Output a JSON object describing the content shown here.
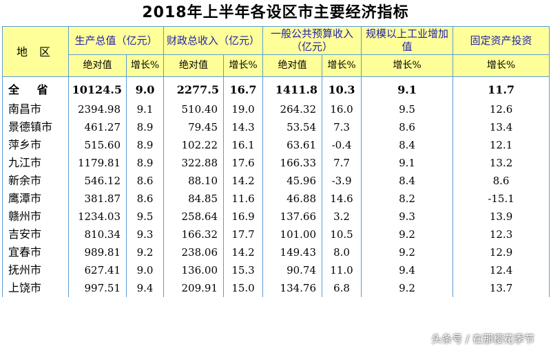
{
  "title": "2018年上半年各设区市主要经济指标",
  "headers": {
    "region": "地  区",
    "gdp": "生产总值（亿元）",
    "fiscal": "财政总收入（亿元）",
    "budget": "一般公共预算收入（亿元）",
    "industry": "规模以上工业增加值",
    "investment": "固定资产投资",
    "absolute": "绝对值",
    "growth": "增长%"
  },
  "total": {
    "name": "全  省",
    "gdp": "10124.5",
    "gdp_g": "9.0",
    "fiscal": "2277.5",
    "fiscal_g": "16.7",
    "budget": "1411.8",
    "budget_g": "10.3",
    "industry_g": "9.1",
    "invest_g": "11.7"
  },
  "rows": [
    {
      "name": "南昌市",
      "gdp": "2394.98",
      "gdp_g": "9.1",
      "fiscal": "510.40",
      "fiscal_g": "19.0",
      "budget": "264.32",
      "budget_g": "16.0",
      "industry_g": "9.5",
      "invest_g": "12.6"
    },
    {
      "name": "景德镇市",
      "gdp": "461.27",
      "gdp_g": "8.9",
      "fiscal": "79.45",
      "fiscal_g": "14.3",
      "budget": "53.54",
      "budget_g": "7.3",
      "industry_g": "8.6",
      "invest_g": "13.4"
    },
    {
      "name": "萍乡市",
      "gdp": "515.60",
      "gdp_g": "8.9",
      "fiscal": "102.22",
      "fiscal_g": "16.1",
      "budget": "63.61",
      "budget_g": "-0.4",
      "industry_g": "8.4",
      "invest_g": "12.1"
    },
    {
      "name": "九江市",
      "gdp": "1179.81",
      "gdp_g": "8.9",
      "fiscal": "322.88",
      "fiscal_g": "17.6",
      "budget": "166.33",
      "budget_g": "7.7",
      "industry_g": "9.1",
      "invest_g": "13.2"
    },
    {
      "name": "新余市",
      "gdp": "546.12",
      "gdp_g": "8.6",
      "fiscal": "88.10",
      "fiscal_g": "14.2",
      "budget": "45.96",
      "budget_g": "-3.9",
      "industry_g": "8.4",
      "invest_g": "8.6"
    },
    {
      "name": "鹰潭市",
      "gdp": "381.87",
      "gdp_g": "8.6",
      "fiscal": "84.85",
      "fiscal_g": "11.6",
      "budget": "46.88",
      "budget_g": "14.6",
      "industry_g": "8.2",
      "invest_g": "-15.1"
    },
    {
      "name": "赣州市",
      "gdp": "1234.03",
      "gdp_g": "9.5",
      "fiscal": "258.64",
      "fiscal_g": "16.9",
      "budget": "137.66",
      "budget_g": "3.2",
      "industry_g": "9.3",
      "invest_g": "13.9"
    },
    {
      "name": "吉安市",
      "gdp": "810.34",
      "gdp_g": "9.3",
      "fiscal": "166.32",
      "fiscal_g": "17.7",
      "budget": "101.00",
      "budget_g": "10.5",
      "industry_g": "9.2",
      "invest_g": "12.3"
    },
    {
      "name": "宜春市",
      "gdp": "989.81",
      "gdp_g": "9.2",
      "fiscal": "238.06",
      "fiscal_g": "14.2",
      "budget": "149.43",
      "budget_g": "8.0",
      "industry_g": "9.2",
      "invest_g": "12.9"
    },
    {
      "name": "抚州市",
      "gdp": "627.41",
      "gdp_g": "9.0",
      "fiscal": "136.00",
      "fiscal_g": "15.3",
      "budget": "90.74",
      "budget_g": "11.0",
      "industry_g": "9.4",
      "invest_g": "12.4"
    },
    {
      "name": "上饶市",
      "gdp": "997.51",
      "gdp_g": "9.4",
      "fiscal": "209.91",
      "fiscal_g": "15.0",
      "budget": "134.76",
      "budget_g": "6.8",
      "industry_g": "9.2",
      "invest_g": "13.7"
    }
  ],
  "watermark": "头条号 / 在那樱花季节"
}
